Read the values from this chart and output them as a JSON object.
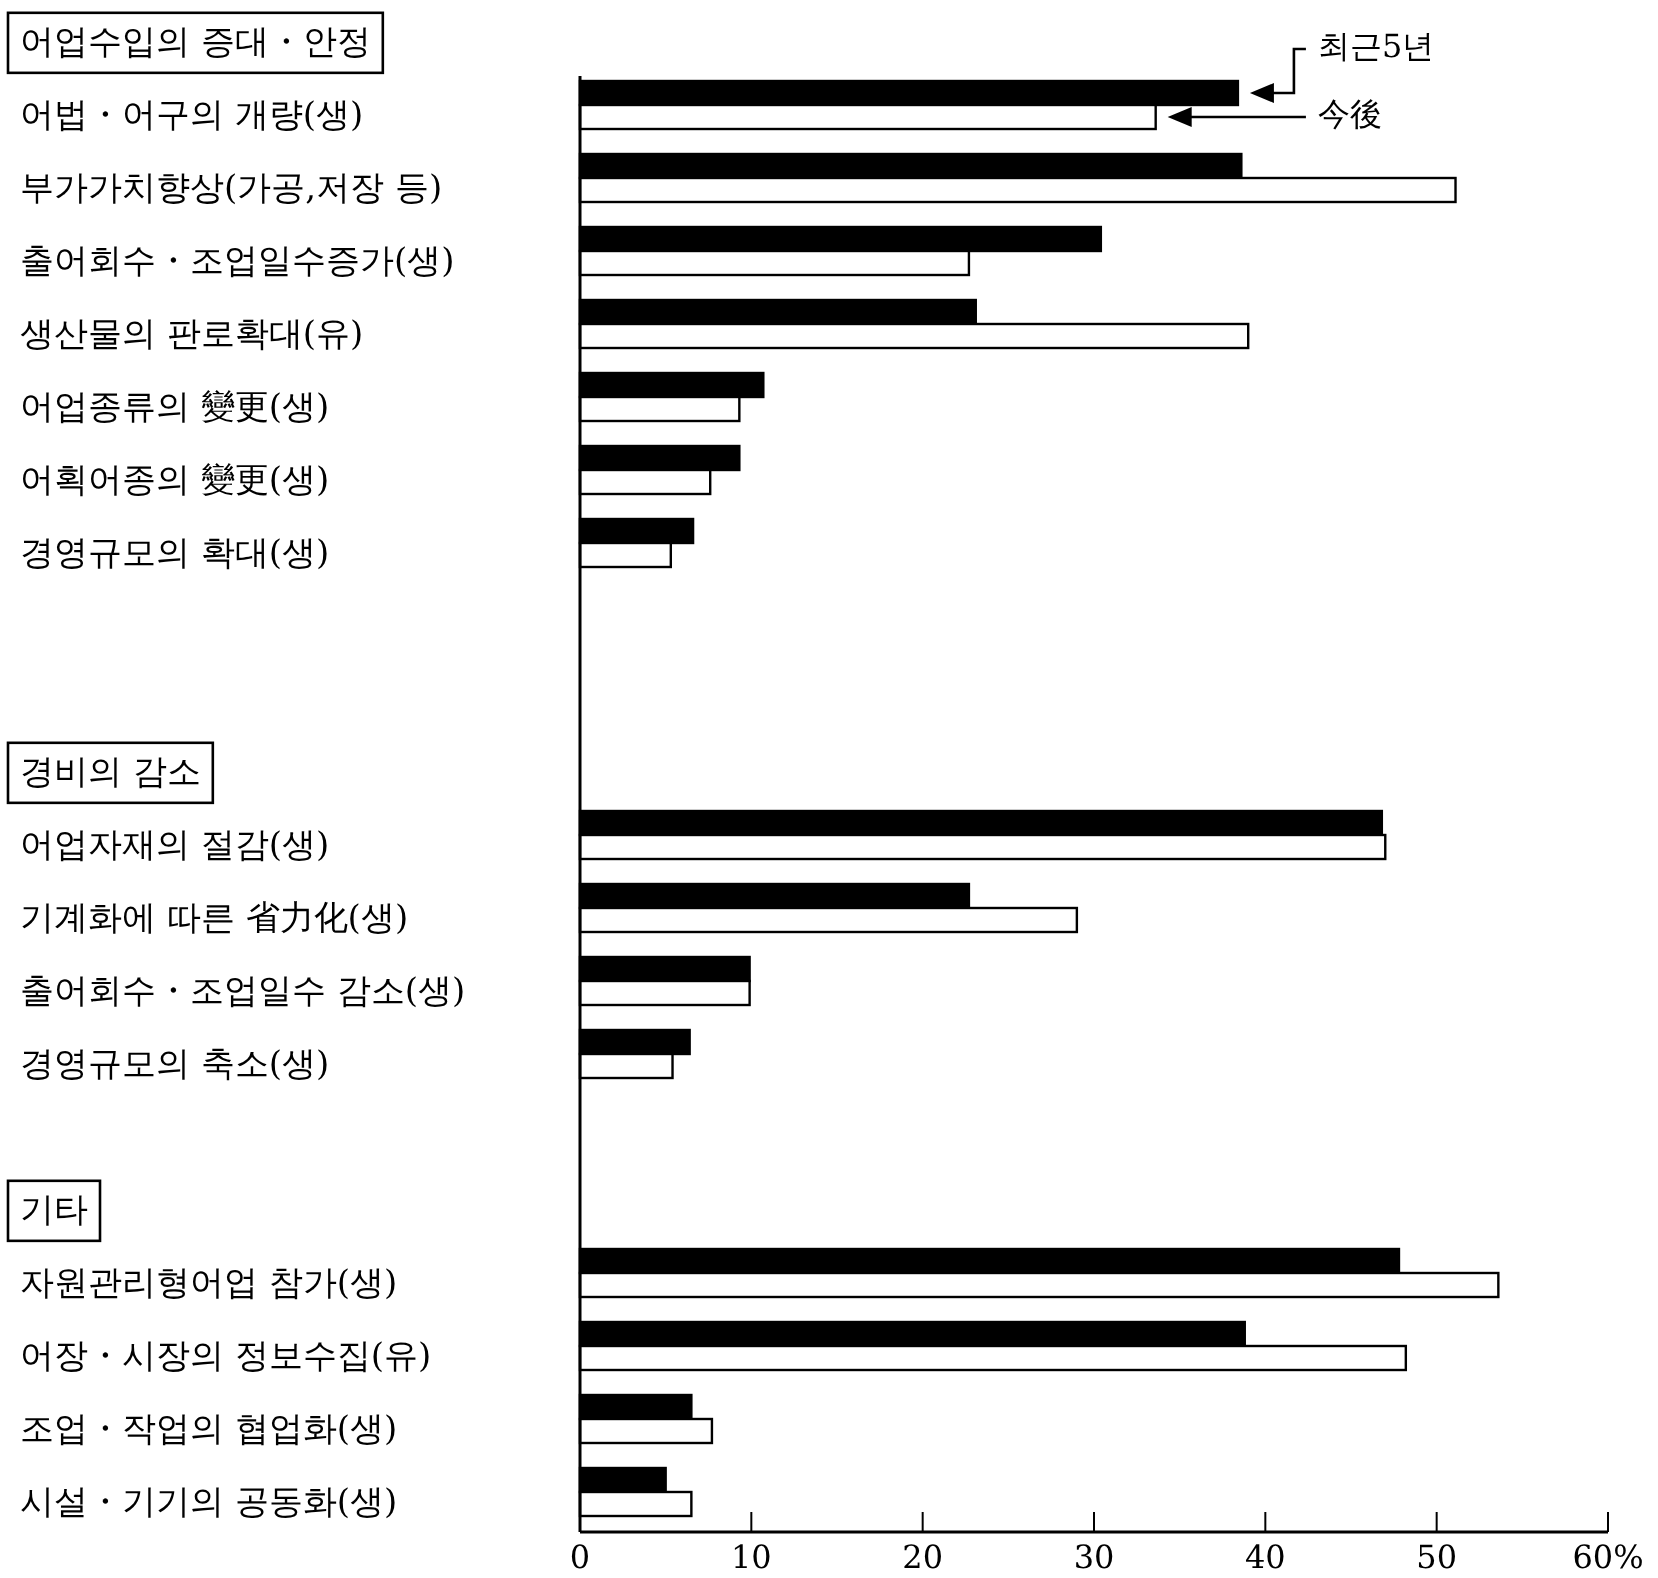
{
  "chart_data": {
    "type": "bar",
    "orientation": "horizontal",
    "categories": [
      "어업수입의 증대・안정",
      "어법・어구의 개량(생)",
      "부가가치향상(가공,저장 등)",
      "출어회수・조업일수증가(생)",
      "생산물의 판로확대(유)",
      "어업종류의 變更(생)",
      "어획어종의 變更(생)",
      "경영규모의 확대(생)",
      null,
      null,
      "경비의 감소",
      "어업자재의 절감(생)",
      "기계화에 따른 省力化(생)",
      "출어회수・조업일수 감소(생)",
      "경영규모의 축소(생)",
      null,
      "기타",
      "자원관리형어업 참가(생)",
      "어장・시장의 정보수집(유)",
      "조업・작업의 협업화(생)",
      "시설・기기의 공동화(생)"
    ],
    "series": [
      {
        "name": "최근5년",
        "color": "#000000",
        "values": [
          null,
          38.4,
          38.6,
          30.4,
          23.1,
          10.7,
          9.3,
          6.6,
          null,
          null,
          null,
          46.8,
          22.7,
          9.9,
          6.4,
          null,
          null,
          47.8,
          38.8,
          6.5,
          5.0
        ]
      },
      {
        "name": "今後",
        "color": "#ffffff",
        "values": [
          null,
          33.6,
          51.1,
          22.7,
          39.0,
          9.3,
          7.6,
          5.3,
          null,
          null,
          null,
          47.0,
          29.0,
          9.9,
          5.4,
          null,
          null,
          53.6,
          48.2,
          7.7,
          6.5
        ]
      }
    ],
    "xlim": [
      0,
      60
    ],
    "xticks": [
      0,
      10,
      20,
      30,
      40,
      50,
      {
        "value": 60,
        "label": "60%"
      }
    ]
  }
}
